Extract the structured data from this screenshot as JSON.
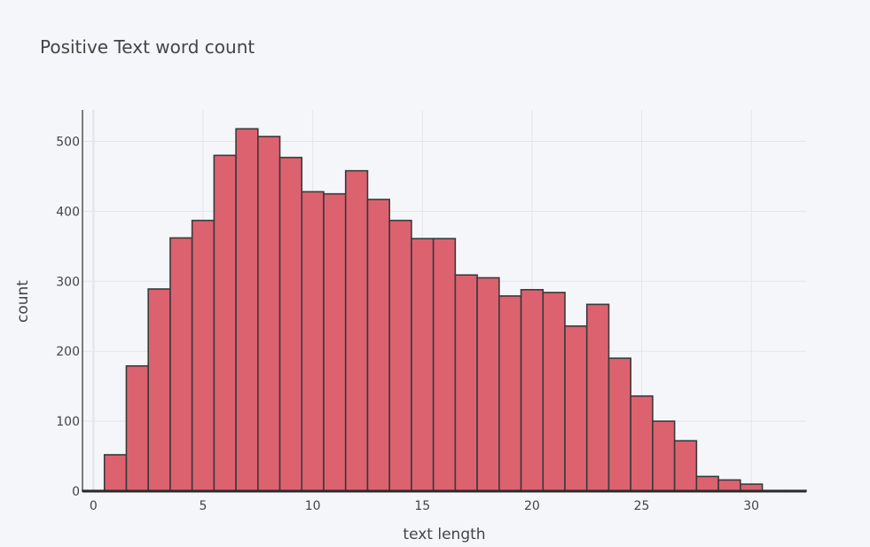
{
  "chart_data": {
    "type": "bar",
    "title": "Positive Text word count",
    "xlabel": "text length",
    "ylabel": "count",
    "xlim": [
      -0.5,
      32.5
    ],
    "ylim": [
      0,
      545
    ],
    "xticks": [
      0,
      5,
      10,
      15,
      20,
      25,
      30
    ],
    "yticks": [
      0,
      100,
      200,
      300,
      400,
      500
    ],
    "grid": true,
    "bar_color": "#dd6270",
    "edge_color": "#3a3a3a",
    "background": "#f5f6fa",
    "bins": [
      {
        "x0": 0.5,
        "x1": 1.5,
        "value": 52
      },
      {
        "x0": 1.5,
        "x1": 2.5,
        "value": 179
      },
      {
        "x0": 2.5,
        "x1": 3.5,
        "value": 289
      },
      {
        "x0": 3.5,
        "x1": 4.5,
        "value": 362
      },
      {
        "x0": 4.5,
        "x1": 5.5,
        "value": 387
      },
      {
        "x0": 5.5,
        "x1": 6.5,
        "value": 480
      },
      {
        "x0": 6.5,
        "x1": 7.5,
        "value": 518
      },
      {
        "x0": 7.5,
        "x1": 8.5,
        "value": 507
      },
      {
        "x0": 8.5,
        "x1": 9.5,
        "value": 477
      },
      {
        "x0": 9.5,
        "x1": 10.5,
        "value": 428
      },
      {
        "x0": 10.5,
        "x1": 11.5,
        "value": 425
      },
      {
        "x0": 11.5,
        "x1": 12.5,
        "value": 458
      },
      {
        "x0": 12.5,
        "x1": 13.5,
        "value": 417
      },
      {
        "x0": 13.5,
        "x1": 14.5,
        "value": 387
      },
      {
        "x0": 14.5,
        "x1": 15.5,
        "value": 361
      },
      {
        "x0": 15.5,
        "x1": 16.5,
        "value": 361
      },
      {
        "x0": 16.5,
        "x1": 17.5,
        "value": 309
      },
      {
        "x0": 17.5,
        "x1": 18.5,
        "value": 305
      },
      {
        "x0": 18.5,
        "x1": 19.5,
        "value": 279
      },
      {
        "x0": 19.5,
        "x1": 20.5,
        "value": 288
      },
      {
        "x0": 20.5,
        "x1": 21.5,
        "value": 284
      },
      {
        "x0": 21.5,
        "x1": 22.5,
        "value": 236
      },
      {
        "x0": 22.5,
        "x1": 23.5,
        "value": 267
      },
      {
        "x0": 23.5,
        "x1": 24.5,
        "value": 190
      },
      {
        "x0": 24.5,
        "x1": 25.5,
        "value": 136
      },
      {
        "x0": 25.5,
        "x1": 26.5,
        "value": 100
      },
      {
        "x0": 26.5,
        "x1": 27.5,
        "value": 72
      },
      {
        "x0": 27.5,
        "x1": 28.5,
        "value": 21
      },
      {
        "x0": 28.5,
        "x1": 29.5,
        "value": 16
      },
      {
        "x0": 29.5,
        "x1": 30.5,
        "value": 10
      },
      {
        "x0": 30.5,
        "x1": 31.5,
        "value": 1
      },
      {
        "x0": 31.5,
        "x1": 32.5,
        "value": 1
      },
      {
        "x0": -0.5,
        "x1": 0.5,
        "value": 1
      }
    ]
  }
}
